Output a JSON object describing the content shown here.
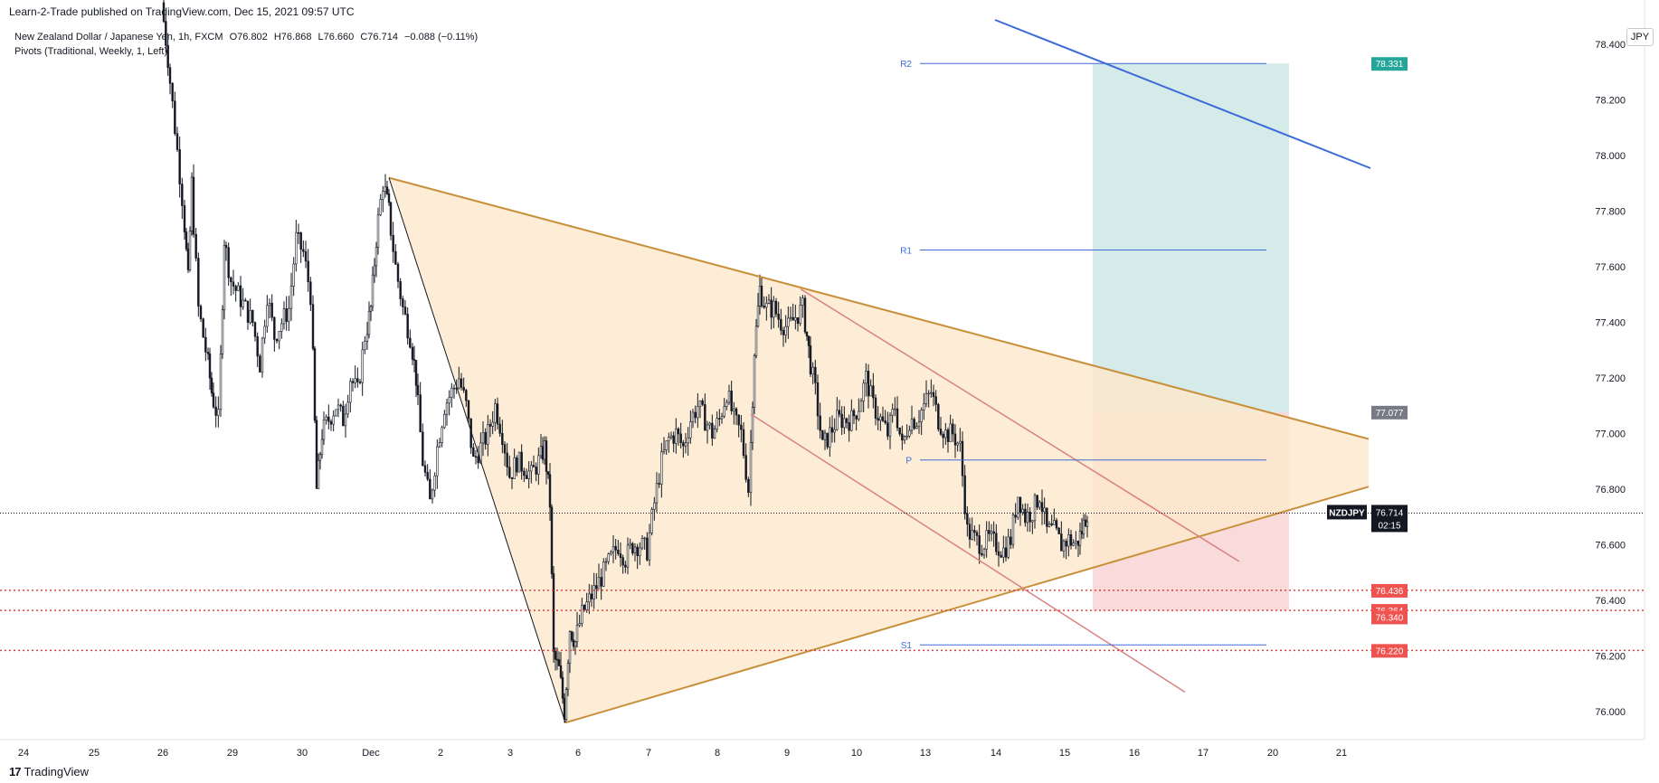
{
  "header": {
    "published": "Learn-2-Trade published on TradingView.com, Dec 15, 2021 09:57 UTC"
  },
  "legend": {
    "symbol": "New Zealand Dollar / Japanese Yen, 1h, FXCM",
    "open": "O76.802",
    "high": "H76.868",
    "low": "L76.660",
    "close": "C76.714",
    "change": "−0.088 (−0.11%)",
    "indicator": "Pivots (Traditional, Weekly, 1, Left)"
  },
  "currency": "JPY",
  "footer": {
    "brand": "TradingView",
    "logo": "17"
  },
  "chart_data": {
    "type": "candlestick",
    "y_axis": {
      "ticks": [
        76.0,
        76.2,
        76.4,
        76.6,
        76.8,
        77.0,
        77.2,
        77.4,
        77.6,
        77.8,
        78.0,
        78.2,
        78.4
      ],
      "tick_labels": [
        "76.000",
        "76.200",
        "76.400",
        "76.600",
        "76.800",
        "77.000",
        "77.200",
        "77.400",
        "77.600",
        "77.800",
        "78.000",
        "78.200",
        "78.400"
      ],
      "range": [
        75.91,
        78.55
      ]
    },
    "x_axis": {
      "labels": [
        "24",
        "25",
        "26",
        "29",
        "30",
        "Dec",
        "2",
        "3",
        "6",
        "7",
        "8",
        "9",
        "10",
        "13",
        "14",
        "15",
        "16",
        "17",
        "20",
        "21"
      ]
    },
    "price_labels": [
      {
        "text": "78.331",
        "value": 78.331,
        "color": "#26a69a"
      },
      {
        "text": "77.077",
        "value": 77.077,
        "color": "#787b86"
      },
      {
        "text": "76.714",
        "value": 76.714,
        "color": "#131722",
        "tag": "NZDJPY",
        "countdown": "02:15"
      },
      {
        "text": "76.436",
        "value": 76.436,
        "color": "#ef5350"
      },
      {
        "text": "76.364",
        "value": 76.364,
        "color": "#ef5350"
      },
      {
        "text": "76.340",
        "value": 76.34,
        "color": "#ef5350"
      },
      {
        "text": "76.220",
        "value": 76.22,
        "color": "#ef5350"
      }
    ],
    "pivots": [
      {
        "label": "R2",
        "value": 78.331
      },
      {
        "label": "R1",
        "value": 77.66
      },
      {
        "label": "P",
        "value": 76.905
      },
      {
        "label": "S1",
        "value": 76.24
      }
    ],
    "horizontal_levels": [
      76.436,
      76.364,
      76.22
    ],
    "last_price": 76.714,
    "position": {
      "entry": 77.077,
      "target": 78.331,
      "stop": 76.364
    },
    "key_points": [
      {
        "x": "Dec 1",
        "value": 77.92
      },
      {
        "x": "Dec 6",
        "value": 75.96
      },
      {
        "x": "Dec 8",
        "value": 77.56
      }
    ],
    "colors": {
      "up": "#131722",
      "down": "#131722",
      "triangle_fill": "#fde9cc",
      "triangle_line": "#c8903a",
      "channel": "#d98080",
      "trend_blue": "#3d6bd9",
      "pivot": "#3d6bd9",
      "target_fill": "#cce8e5",
      "stop_fill": "#f9d5d5"
    }
  }
}
